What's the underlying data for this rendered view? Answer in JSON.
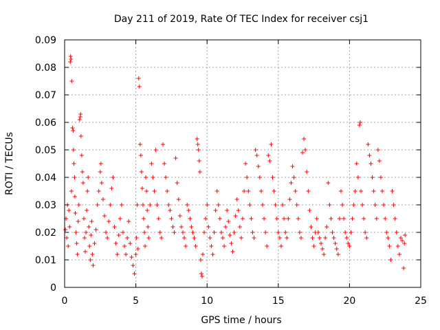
{
  "chart_data": {
    "type": "scatter",
    "title": "Day 211 of 2019, Rate Of TEC Index for receiver csj1",
    "xlabel": "GPS time / hours",
    "ylabel": "ROTI / TECUs",
    "xlim": [
      0,
      25
    ],
    "ylim": [
      0,
      0.09
    ],
    "x_ticks": [
      0,
      5,
      10,
      15,
      20,
      25
    ],
    "y_ticks": [
      0,
      0.01,
      0.02,
      0.03,
      0.04,
      0.05,
      0.06,
      0.07,
      0.08,
      0.09
    ],
    "x_tick_labels": [
      "0",
      "5",
      "10",
      "15",
      "20",
      "25"
    ],
    "y_tick_labels": [
      "0",
      "0.01",
      "0.02",
      "0.03",
      "0.04",
      "0.05",
      "0.06",
      "0.07",
      "0.08",
      "0.09"
    ],
    "grid": true,
    "marker": "+",
    "series_color": "#ff0000",
    "series": [
      {
        "name": "ROTI",
        "points": [
          [
            0.05,
            0.021
          ],
          [
            0.1,
            0.025
          ],
          [
            0.15,
            0.018
          ],
          [
            0.2,
            0.03
          ],
          [
            0.25,
            0.015
          ],
          [
            0.3,
            0.028
          ],
          [
            0.35,
            0.022
          ],
          [
            0.4,
            0.082
          ],
          [
            0.42,
            0.084
          ],
          [
            0.45,
            0.083
          ],
          [
            0.5,
            0.075
          ],
          [
            0.48,
            0.035
          ],
          [
            0.55,
            0.058
          ],
          [
            0.6,
            0.057
          ],
          [
            0.62,
            0.05
          ],
          [
            0.65,
            0.045
          ],
          [
            0.7,
            0.04
          ],
          [
            0.72,
            0.033
          ],
          [
            0.75,
            0.027
          ],
          [
            0.8,
            0.02
          ],
          [
            0.85,
            0.016
          ],
          [
            0.9,
            0.012
          ],
          [
            0.95,
            0.024
          ],
          [
            1.0,
            0.03
          ],
          [
            1.05,
            0.061
          ],
          [
            1.1,
            0.062
          ],
          [
            1.12,
            0.063
          ],
          [
            1.15,
            0.055
          ],
          [
            1.2,
            0.048
          ],
          [
            1.25,
            0.042
          ],
          [
            1.3,
            0.038
          ],
          [
            1.35,
            0.025
          ],
          [
            1.4,
            0.018
          ],
          [
            1.45,
            0.013
          ],
          [
            1.5,
            0.02
          ],
          [
            1.55,
            0.028
          ],
          [
            1.6,
            0.035
          ],
          [
            1.65,
            0.04
          ],
          [
            1.7,
            0.022
          ],
          [
            1.75,
            0.015
          ],
          [
            1.8,
            0.01
          ],
          [
            1.85,
            0.019
          ],
          [
            1.9,
            0.024
          ],
          [
            1.95,
            0.012
          ],
          [
            2.0,
            0.008
          ],
          [
            2.1,
            0.016
          ],
          [
            2.2,
            0.021
          ],
          [
            2.3,
            0.03
          ],
          [
            2.4,
            0.035
          ],
          [
            2.5,
            0.042
          ],
          [
            2.55,
            0.045
          ],
          [
            2.6,
            0.038
          ],
          [
            2.7,
            0.032
          ],
          [
            2.8,
            0.026
          ],
          [
            2.9,
            0.02
          ],
          [
            3.0,
            0.018
          ],
          [
            3.1,
            0.024
          ],
          [
            3.2,
            0.03
          ],
          [
            3.3,
            0.036
          ],
          [
            3.4,
            0.04
          ],
          [
            3.5,
            0.022
          ],
          [
            3.6,
            0.016
          ],
          [
            3.7,
            0.012
          ],
          [
            3.8,
            0.019
          ],
          [
            3.9,
            0.025
          ],
          [
            4.0,
            0.03
          ],
          [
            4.1,
            0.02
          ],
          [
            4.2,
            0.015
          ],
          [
            4.3,
            0.012
          ],
          [
            4.4,
            0.018
          ],
          [
            4.5,
            0.024
          ],
          [
            4.6,
            0.016
          ],
          [
            4.7,
            0.011
          ],
          [
            4.8,
            0.008
          ],
          [
            4.9,
            0.005
          ],
          [
            5.0,
            0.012
          ],
          [
            5.05,
            0.018
          ],
          [
            5.1,
            0.03
          ],
          [
            5.15,
            0.014
          ],
          [
            5.2,
            0.076
          ],
          [
            5.25,
            0.073
          ],
          [
            5.3,
            0.052
          ],
          [
            5.35,
            0.048
          ],
          [
            5.4,
            0.042
          ],
          [
            5.45,
            0.036
          ],
          [
            5.5,
            0.03
          ],
          [
            5.55,
            0.025
          ],
          [
            5.6,
            0.02
          ],
          [
            5.65,
            0.015
          ],
          [
            5.7,
            0.04
          ],
          [
            5.75,
            0.035
          ],
          [
            5.8,
            0.028
          ],
          [
            5.85,
            0.022
          ],
          [
            5.9,
            0.018
          ],
          [
            6.0,
            0.03
          ],
          [
            6.1,
            0.045
          ],
          [
            6.2,
            0.04
          ],
          [
            6.3,
            0.035
          ],
          [
            6.4,
            0.05
          ],
          [
            6.5,
            0.03
          ],
          [
            6.6,
            0.025
          ],
          [
            6.7,
            0.02
          ],
          [
            6.8,
            0.018
          ],
          [
            6.9,
            0.052
          ],
          [
            7.0,
            0.045
          ],
          [
            7.1,
            0.04
          ],
          [
            7.2,
            0.035
          ],
          [
            7.3,
            0.03
          ],
          [
            7.4,
            0.028
          ],
          [
            7.5,
            0.025
          ],
          [
            7.6,
            0.022
          ],
          [
            7.7,
            0.02
          ],
          [
            7.8,
            0.047
          ],
          [
            7.9,
            0.038
          ],
          [
            8.0,
            0.032
          ],
          [
            8.1,
            0.026
          ],
          [
            8.2,
            0.022
          ],
          [
            8.3,
            0.02
          ],
          [
            8.4,
            0.018
          ],
          [
            8.5,
            0.015
          ],
          [
            8.6,
            0.03
          ],
          [
            8.7,
            0.028
          ],
          [
            8.8,
            0.025
          ],
          [
            8.9,
            0.022
          ],
          [
            9.0,
            0.02
          ],
          [
            9.1,
            0.018
          ],
          [
            9.2,
            0.015
          ],
          [
            9.3,
            0.054
          ],
          [
            9.35,
            0.052
          ],
          [
            9.4,
            0.05
          ],
          [
            9.45,
            0.046
          ],
          [
            9.5,
            0.042
          ],
          [
            9.55,
            0.01
          ],
          [
            9.6,
            0.005
          ],
          [
            9.65,
            0.004
          ],
          [
            9.7,
            0.012
          ],
          [
            9.8,
            0.02
          ],
          [
            9.9,
            0.025
          ],
          [
            10.0,
            0.03
          ],
          [
            10.1,
            0.022
          ],
          [
            10.2,
            0.018
          ],
          [
            10.3,
            0.015
          ],
          [
            10.4,
            0.012
          ],
          [
            10.5,
            0.02
          ],
          [
            10.6,
            0.028
          ],
          [
            10.7,
            0.035
          ],
          [
            10.8,
            0.03
          ],
          [
            10.9,
            0.025
          ],
          [
            11.0,
            0.02
          ],
          [
            11.1,
            0.018
          ],
          [
            11.2,
            0.015
          ],
          [
            11.3,
            0.022
          ],
          [
            11.4,
            0.028
          ],
          [
            11.5,
            0.024
          ],
          [
            11.6,
            0.019
          ],
          [
            11.7,
            0.016
          ],
          [
            11.8,
            0.013
          ],
          [
            11.9,
            0.02
          ],
          [
            12.0,
            0.026
          ],
          [
            12.1,
            0.032
          ],
          [
            12.2,
            0.028
          ],
          [
            12.3,
            0.022
          ],
          [
            12.4,
            0.018
          ],
          [
            12.5,
            0.025
          ],
          [
            12.6,
            0.035
          ],
          [
            12.7,
            0.045
          ],
          [
            12.8,
            0.04
          ],
          [
            12.9,
            0.035
          ],
          [
            13.0,
            0.03
          ],
          [
            13.1,
            0.025
          ],
          [
            13.2,
            0.02
          ],
          [
            13.3,
            0.018
          ],
          [
            13.4,
            0.05
          ],
          [
            13.5,
            0.048
          ],
          [
            13.6,
            0.044
          ],
          [
            13.7,
            0.04
          ],
          [
            13.8,
            0.035
          ],
          [
            13.9,
            0.03
          ],
          [
            14.0,
            0.025
          ],
          [
            14.1,
            0.02
          ],
          [
            14.2,
            0.015
          ],
          [
            14.3,
            0.048
          ],
          [
            14.4,
            0.046
          ],
          [
            14.5,
            0.052
          ],
          [
            14.6,
            0.04
          ],
          [
            14.7,
            0.035
          ],
          [
            14.8,
            0.03
          ],
          [
            14.9,
            0.025
          ],
          [
            15.0,
            0.02
          ],
          [
            15.1,
            0.018
          ],
          [
            15.2,
            0.015
          ],
          [
            15.3,
            0.03
          ],
          [
            15.4,
            0.025
          ],
          [
            15.5,
            0.02
          ],
          [
            15.6,
            0.018
          ],
          [
            15.7,
            0.025
          ],
          [
            15.8,
            0.032
          ],
          [
            15.9,
            0.038
          ],
          [
            16.0,
            0.044
          ],
          [
            16.1,
            0.04
          ],
          [
            16.2,
            0.035
          ],
          [
            16.3,
            0.03
          ],
          [
            16.4,
            0.025
          ],
          [
            16.5,
            0.02
          ],
          [
            16.6,
            0.018
          ],
          [
            16.7,
            0.049
          ],
          [
            16.8,
            0.054
          ],
          [
            16.9,
            0.05
          ],
          [
            17.0,
            0.042
          ],
          [
            17.1,
            0.035
          ],
          [
            17.2,
            0.028
          ],
          [
            17.3,
            0.022
          ],
          [
            17.4,
            0.018
          ],
          [
            17.5,
            0.015
          ],
          [
            17.6,
            0.02
          ],
          [
            17.7,
            0.025
          ],
          [
            17.8,
            0.02
          ],
          [
            17.9,
            0.018
          ],
          [
            18.0,
            0.016
          ],
          [
            18.1,
            0.014
          ],
          [
            18.2,
            0.012
          ],
          [
            18.3,
            0.018
          ],
          [
            18.4,
            0.022
          ],
          [
            18.5,
            0.038
          ],
          [
            18.6,
            0.03
          ],
          [
            18.7,
            0.025
          ],
          [
            18.8,
            0.02
          ],
          [
            18.9,
            0.018
          ],
          [
            19.0,
            0.016
          ],
          [
            19.1,
            0.014
          ],
          [
            19.2,
            0.012
          ],
          [
            19.3,
            0.025
          ],
          [
            19.4,
            0.035
          ],
          [
            19.5,
            0.03
          ],
          [
            19.6,
            0.025
          ],
          [
            19.7,
            0.02
          ],
          [
            19.8,
            0.018
          ],
          [
            19.9,
            0.016
          ],
          [
            20.0,
            0.015
          ],
          [
            20.1,
            0.02
          ],
          [
            20.2,
            0.025
          ],
          [
            20.3,
            0.03
          ],
          [
            20.4,
            0.035
          ],
          [
            20.5,
            0.045
          ],
          [
            20.6,
            0.04
          ],
          [
            20.7,
            0.059
          ],
          [
            20.75,
            0.06
          ],
          [
            20.8,
            0.035
          ],
          [
            20.9,
            0.03
          ],
          [
            21.0,
            0.025
          ],
          [
            21.1,
            0.02
          ],
          [
            21.2,
            0.018
          ],
          [
            21.3,
            0.052
          ],
          [
            21.4,
            0.048
          ],
          [
            21.5,
            0.045
          ],
          [
            21.6,
            0.04
          ],
          [
            21.7,
            0.035
          ],
          [
            21.8,
            0.03
          ],
          [
            21.9,
            0.025
          ],
          [
            22.0,
            0.05
          ],
          [
            22.1,
            0.046
          ],
          [
            22.2,
            0.04
          ],
          [
            22.3,
            0.035
          ],
          [
            22.4,
            0.03
          ],
          [
            22.5,
            0.025
          ],
          [
            22.6,
            0.02
          ],
          [
            22.7,
            0.018
          ],
          [
            22.8,
            0.015
          ],
          [
            22.9,
            0.01
          ],
          [
            23.0,
            0.035
          ],
          [
            23.1,
            0.03
          ],
          [
            23.2,
            0.025
          ],
          [
            23.3,
            0.02
          ],
          [
            23.4,
            0.015
          ],
          [
            23.5,
            0.012
          ],
          [
            23.6,
            0.018
          ],
          [
            23.7,
            0.017
          ],
          [
            23.8,
            0.007
          ],
          [
            23.85,
            0.016
          ],
          [
            23.9,
            0.019
          ]
        ]
      }
    ]
  }
}
